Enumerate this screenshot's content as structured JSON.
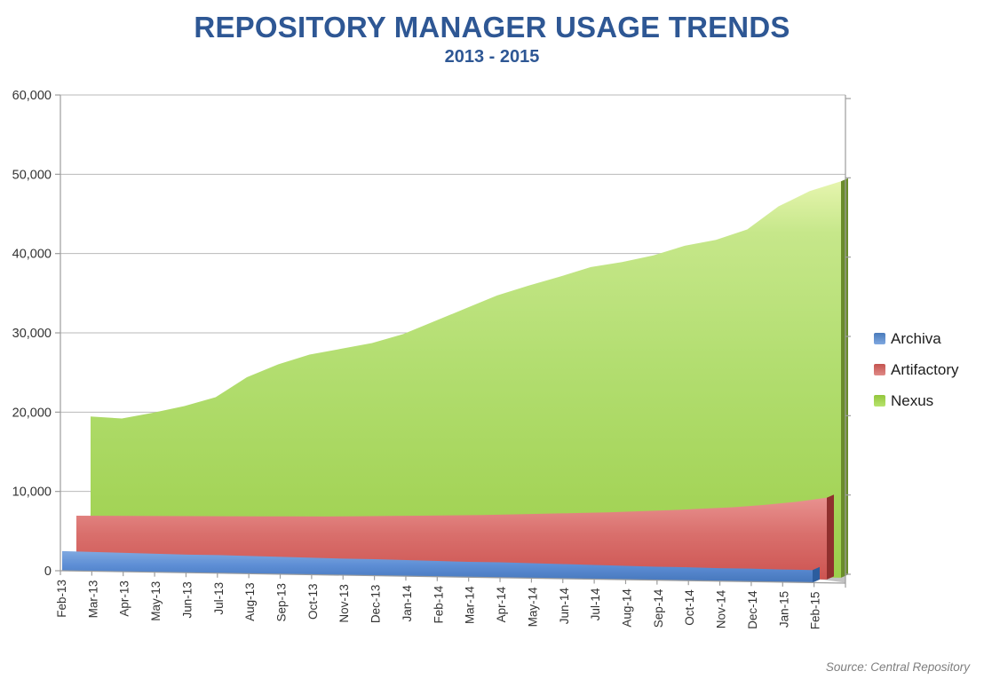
{
  "header": {
    "title": "REPOSITORY MANAGER USAGE TRENDS",
    "subtitle": "2013 - 2015"
  },
  "source_note": "Source: Central Repository",
  "colors": {
    "title_text": "#2e5794",
    "axis_line": "#9d9d9d",
    "gridline": "#b9b9b9",
    "tick_text": "#333333",
    "floor": "#c2c2c2"
  },
  "chart_data": {
    "type": "area",
    "variant": "3d-overlapping-areas",
    "title": "REPOSITORY MANAGER USAGE TRENDS",
    "subtitle": "2013 - 2015",
    "categories": [
      "Feb-13",
      "Mar-13",
      "Apr-13",
      "May-13",
      "Jun-13",
      "Jul-13",
      "Aug-13",
      "Sep-13",
      "Oct-13",
      "Nov-13",
      "Dec-13",
      "Jan-14",
      "Feb-14",
      "Mar-14",
      "Apr-14",
      "May-14",
      "Jun-14",
      "Jul-14",
      "Aug-14",
      "Sep-14",
      "Oct-14",
      "Nov-14",
      "Dec-14",
      "Jan-15",
      "Feb-15"
    ],
    "series": [
      {
        "name": "Archiva",
        "color": "#4f81bd",
        "fill_top": "#7fa8e0",
        "fill_mid": "#5d8ed5",
        "fill_bottom": "#4576bb",
        "side": "#2c5d9e",
        "marker_top": "#4a7bbb",
        "marker_bottom": "#7fa8e0",
        "values": [
          2500,
          2450,
          2400,
          2350,
          2300,
          2300,
          2250,
          2200,
          2150,
          2100,
          2100,
          2050,
          2000,
          1950,
          1950,
          1900,
          1850,
          1800,
          1750,
          1700,
          1700,
          1650,
          1650,
          1600,
          1600
        ]
      },
      {
        "name": "Artifactory",
        "color": "#c0504d",
        "fill_top": "#e8918f",
        "fill_mid": "#d96f6c",
        "fill_bottom": "#cd5451",
        "side": "#90302e",
        "marker_top": "#c4534f",
        "marker_bottom": "#e08a87",
        "values": [
          6600,
          6650,
          6700,
          6750,
          6800,
          6850,
          6900,
          6950,
          7000,
          7100,
          7200,
          7300,
          7400,
          7500,
          7650,
          7800,
          7950,
          8100,
          8300,
          8500,
          8750,
          9000,
          9350,
          9800,
          10400
        ]
      },
      {
        "name": "Nexus",
        "color": "#9bbb59",
        "fill_top": "#e6f5ae",
        "fill_mid": "#b3de71",
        "fill_bottom": "#9ccf4b",
        "side": "#6a8c2b",
        "marker_top": "#94c63d",
        "marker_bottom": "#b7e46e",
        "values": [
          19000,
          18800,
          19600,
          20500,
          21700,
          24300,
          26000,
          27300,
          28100,
          28900,
          30100,
          31800,
          33500,
          35200,
          36500,
          37700,
          39000,
          39700,
          40600,
          41900,
          42700,
          44100,
          47100,
          49100,
          50400
        ]
      }
    ],
    "ylim": [
      0,
      60000
    ],
    "ytick_labels": [
      "0",
      "10,000",
      "20,000",
      "30,000",
      "40,000",
      "50,000",
      "60,000"
    ],
    "xlabel": "",
    "ylabel": "",
    "grid": true,
    "legend_position": "right"
  }
}
